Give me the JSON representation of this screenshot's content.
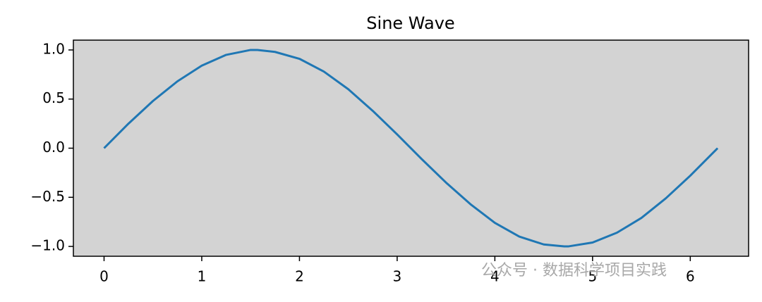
{
  "chart_data": {
    "type": "line",
    "title": "Sine Wave",
    "x": [
      0,
      0.25,
      0.5,
      0.75,
      1,
      1.25,
      1.5,
      1.57,
      1.75,
      2,
      2.25,
      2.5,
      2.75,
      3,
      3.25,
      3.5,
      3.75,
      4,
      4.25,
      4.5,
      4.71,
      4.75,
      5,
      5.25,
      5.5,
      5.75,
      6,
      6.25,
      6.28
    ],
    "series": [
      {
        "color": "#1f77b4",
        "values": [
          0,
          0.25,
          0.48,
          0.68,
          0.84,
          0.95,
          1.0,
          1.0,
          0.98,
          0.91,
          0.78,
          0.6,
          0.38,
          0.14,
          -0.11,
          -0.35,
          -0.57,
          -0.76,
          -0.9,
          -0.98,
          -1.0,
          -1.0,
          -0.96,
          -0.86,
          -0.71,
          -0.51,
          -0.28,
          -0.03,
          0
        ]
      }
    ],
    "xlim": [
      -0.314,
      6.597
    ],
    "ylim": [
      -1.1,
      1.1
    ],
    "xticks": [
      0,
      1,
      2,
      3,
      4,
      5,
      6
    ],
    "yticks": [
      {
        "value": -1.0,
        "label": "−1.0"
      },
      {
        "value": -0.5,
        "label": "−0.5"
      },
      {
        "value": 0.0,
        "label": "0.0"
      },
      {
        "value": 0.5,
        "label": "0.5"
      },
      {
        "value": 1.0,
        "label": "1.0"
      }
    ],
    "facecolor": "#d3d3d3",
    "watermark": "公众号 · 数据科学项目实践"
  }
}
